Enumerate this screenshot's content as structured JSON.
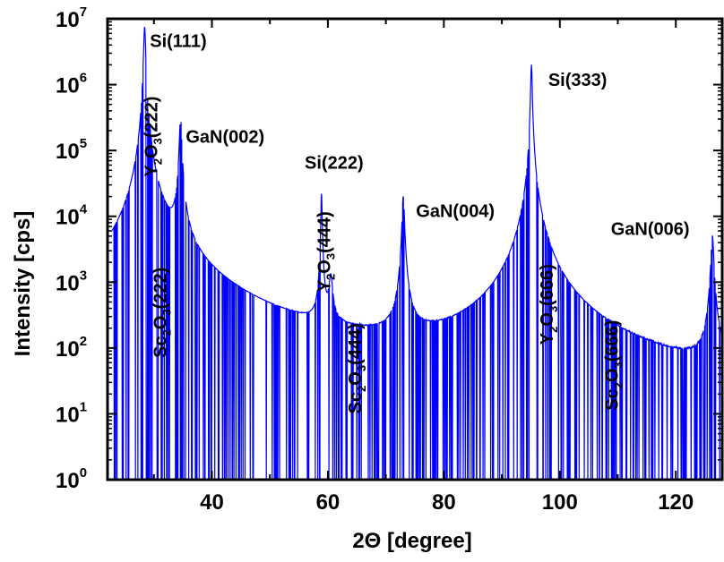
{
  "chart_data": {
    "type": "line",
    "xlabel": "2Θ  [degree]",
    "ylabel": "Intensity  [cps]",
    "xlim": [
      22,
      128
    ],
    "ylim_log10": [
      0,
      7
    ],
    "y_scale": "log",
    "x_ticks": [
      40,
      60,
      80,
      100,
      120
    ],
    "y_ticks": [
      {
        "exp": 0,
        "base": "10",
        "sup": "0"
      },
      {
        "exp": 1,
        "base": "10",
        "sup": "1"
      },
      {
        "exp": 2,
        "base": "10",
        "sup": "2"
      },
      {
        "exp": 3,
        "base": "10",
        "sup": "3"
      },
      {
        "exp": 4,
        "base": "10",
        "sup": "4"
      },
      {
        "exp": 5,
        "base": "10",
        "sup": "5"
      },
      {
        "exp": 6,
        "base": "10",
        "sup": "6"
      },
      {
        "exp": 7,
        "base": "10",
        "sup": "7"
      }
    ],
    "line_color": "#0000ff",
    "baseline_log10": 0.55,
    "peaks": [
      {
        "x": 28.4,
        "log10": 6.88,
        "w": 0.15,
        "tail": 0.6
      },
      {
        "x": 29.3,
        "log10": 4.45,
        "w": 0.25,
        "tail": 1.0
      },
      {
        "x": 31.5,
        "log10": 2.45,
        "w": 0.55,
        "tail": 1.5
      },
      {
        "x": 34.6,
        "log10": 5.5,
        "w": 0.18,
        "tail": 1.2
      },
      {
        "x": 58.9,
        "log10": 4.35,
        "w": 0.1,
        "tail": 0.4
      },
      {
        "x": 60.5,
        "log10": 3.0,
        "w": 0.3,
        "tail": 0.9
      },
      {
        "x": 65.3,
        "log10": 0.8,
        "w": 0.5,
        "tail": 0.5
      },
      {
        "x": 73.0,
        "log10": 4.3,
        "w": 0.18,
        "tail": 1.0
      },
      {
        "x": 95.1,
        "log10": 6.3,
        "w": 0.12,
        "tail": 1.0
      },
      {
        "x": 98.0,
        "log10": 2.15,
        "w": 0.35,
        "tail": 0.9
      },
      {
        "x": 109.4,
        "log10": 0.95,
        "w": 0.4,
        "tail": 0.3
      },
      {
        "x": 126.3,
        "log10": 3.7,
        "w": 0.22,
        "tail": 1.1
      }
    ],
    "annotations": [
      {
        "id": "si111",
        "main": "Si(111)",
        "x": 29.3,
        "log10": 6.57,
        "rotate": false
      },
      {
        "id": "gan002",
        "main": "GaN(002)",
        "x": 35.5,
        "log10": 5.12,
        "rotate": false
      },
      {
        "id": "si222",
        "main": "Si(222)",
        "x": 56.0,
        "log10": 4.72,
        "rotate": false
      },
      {
        "id": "gan004",
        "main": "GaN(004)",
        "x": 75.2,
        "log10": 3.99,
        "rotate": false
      },
      {
        "id": "si333",
        "main": "Si(333)",
        "x": 98.0,
        "log10": 5.98,
        "rotate": false
      },
      {
        "id": "gan006",
        "main": "GaN(006)",
        "x": 108.8,
        "log10": 3.72,
        "rotate": false
      },
      {
        "id": "y2o3-222",
        "parts": [
          "Y",
          "2",
          "O",
          "3",
          "(222)"
        ],
        "x": 30.6,
        "log10": 4.6,
        "rotate": true
      },
      {
        "id": "sc2o3-222",
        "parts": [
          "Sc",
          "2",
          "O",
          "3",
          "(222)"
        ],
        "x": 32.1,
        "log10": 1.85,
        "rotate": true
      },
      {
        "id": "y2o3-444",
        "parts": [
          "Y",
          "2",
          "O",
          "3",
          "(444)"
        ],
        "x": 60.4,
        "log10": 2.85,
        "rotate": true
      },
      {
        "id": "sc2o3-444",
        "parts": [
          "Sc",
          "2",
          "O",
          "3",
          "(444)"
        ],
        "x": 65.7,
        "log10": 1.0,
        "rotate": true
      },
      {
        "id": "y2o3-666",
        "parts": [
          "Y",
          "2",
          "O",
          "3",
          "(666)"
        ],
        "x": 98.8,
        "log10": 2.05,
        "rotate": true
      },
      {
        "id": "sc2o3-666",
        "parts": [
          "Sc",
          "2",
          "O",
          "3",
          "(666)"
        ],
        "x": 110.0,
        "log10": 1.05,
        "rotate": true
      }
    ]
  }
}
